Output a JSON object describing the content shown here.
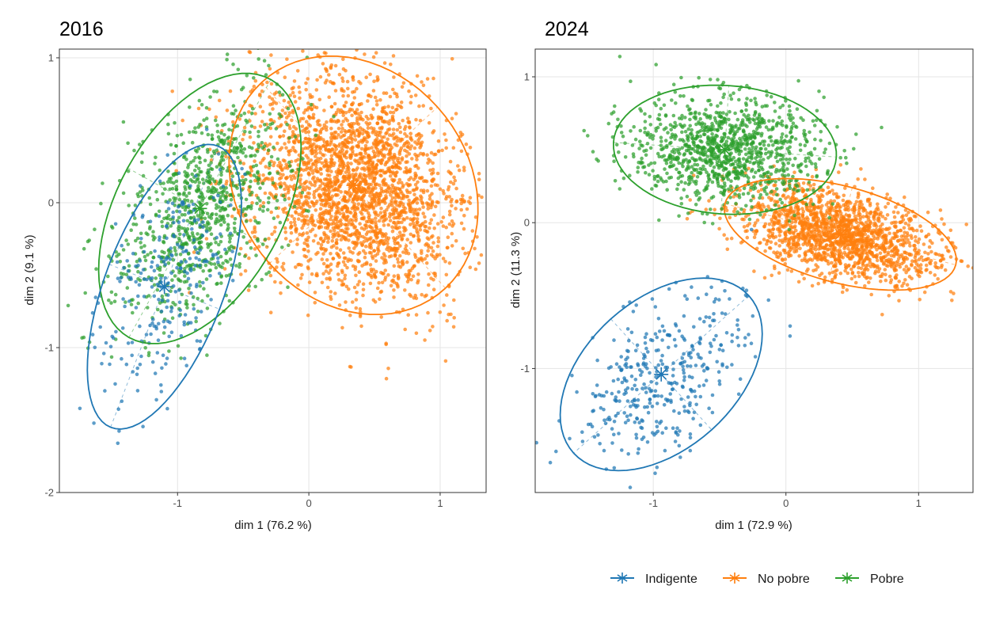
{
  "chart_data": [
    {
      "type": "scatter",
      "title": "2016",
      "xlabel": "dim 1 (76.2 %)",
      "ylabel": "dim 2 (9.1 %)",
      "xlim": [
        -1.9,
        1.35
      ],
      "ylim": [
        -2.0,
        1.06
      ],
      "xticks": [
        "-1",
        "0",
        "1"
      ],
      "xtick_values": [
        -1,
        0,
        1
      ],
      "yticks": [
        "-2",
        "-1",
        "0",
        "1"
      ],
      "ytick_values": [
        -2,
        -1,
        0,
        1
      ],
      "grid": true,
      "groups": [
        {
          "name": "No pobre",
          "color": "#ff7f0e",
          "n": 2600,
          "center": [
            0.34,
            0.12
          ],
          "axis_major": [
            0.7,
            -0.71
          ],
          "axis_minor": [
            0.64,
            0.54
          ]
        },
        {
          "name": "Pobre",
          "color": "#2ca02c",
          "n": 900,
          "center": [
            -0.83,
            -0.04
          ],
          "axis_major": [
            0.54,
            0.89
          ],
          "axis_minor": [
            0.55,
            -0.28
          ]
        },
        {
          "name": "Indigente",
          "color": "#1f77b4",
          "n": 260,
          "center": [
            -1.1,
            -0.58
          ],
          "axis_major": [
            -0.41,
            -0.97
          ],
          "axis_minor": [
            0.42,
            -0.155
          ]
        }
      ]
    },
    {
      "type": "scatter",
      "title": "2024",
      "xlabel": "dim 1 (72.9 %)",
      "ylabel": "dim 2 (11.3 %)",
      "xlim": [
        -1.89,
        1.41
      ],
      "ylim": [
        -1.85,
        1.19
      ],
      "xticks": [
        "-1",
        "0",
        "1"
      ],
      "xtick_values": [
        -1,
        0,
        1
      ],
      "yticks": [
        "-1",
        "0",
        "1"
      ],
      "ytick_values": [
        -1,
        0,
        1
      ],
      "grid": true,
      "groups": [
        {
          "name": "No pobre",
          "color": "#ff7f0e",
          "n": 1700,
          "center": [
            0.41,
            -0.08
          ],
          "axis_major": [
            0.87,
            -0.21
          ],
          "axis_minor": [
            -0.09,
            -0.32
          ]
        },
        {
          "name": "Pobre",
          "color": "#2ca02c",
          "n": 1100,
          "center": [
            -0.46,
            0.5
          ],
          "axis_major": [
            0.84,
            -0.05
          ],
          "axis_minor": [
            0.03,
            0.44
          ]
        },
        {
          "name": "Indigente",
          "color": "#1f77b4",
          "n": 380,
          "center": [
            -0.94,
            -1.04
          ],
          "axis_major": [
            -0.66,
            -0.54
          ],
          "axis_minor": [
            0.38,
            -0.38
          ]
        }
      ]
    }
  ],
  "legend": {
    "position": "bottom-right",
    "items": [
      {
        "label": "Indigente",
        "color": "#1f77b4"
      },
      {
        "label": "No pobre",
        "color": "#ff7f0e"
      },
      {
        "label": "Pobre",
        "color": "#2ca02c"
      }
    ]
  }
}
